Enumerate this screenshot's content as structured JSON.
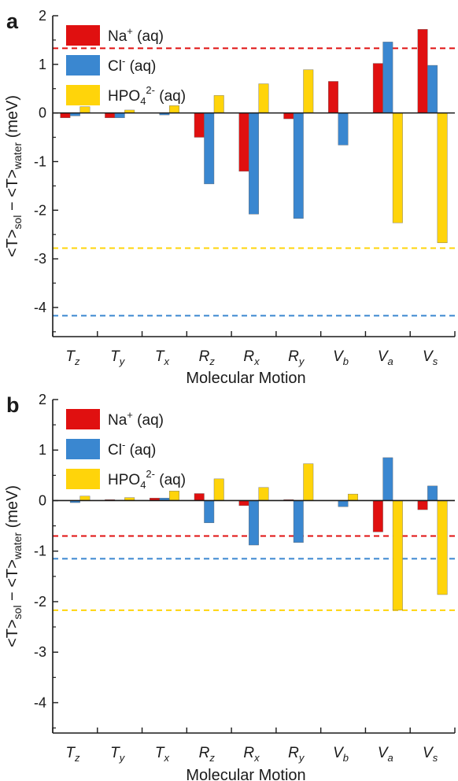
{
  "chart_data": [
    {
      "type": "bar",
      "panel_label": "a",
      "categories": [
        {
          "main": "T",
          "sub": "z"
        },
        {
          "main": "T",
          "sub": "y"
        },
        {
          "main": "T",
          "sub": "x"
        },
        {
          "main": "R",
          "sub": "z"
        },
        {
          "main": "R",
          "sub": "x"
        },
        {
          "main": "R",
          "sub": "y"
        },
        {
          "main": "V",
          "sub": "b"
        },
        {
          "main": "V",
          "sub": "a"
        },
        {
          "main": "V",
          "sub": "s"
        }
      ],
      "series": [
        {
          "name": "Na",
          "sup": "+",
          "sub": "",
          "suffix": " (aq)",
          "color": "#e01010",
          "values": [
            -0.1,
            -0.1,
            0,
            -0.5,
            -1.2,
            -0.12,
            0.65,
            1.02,
            1.72
          ],
          "reference": 1.33
        },
        {
          "name": "Cl",
          "sup": "-",
          "sub": "",
          "suffix": " (aq)",
          "color": "#3a87d0",
          "values": [
            -0.06,
            -0.1,
            -0.04,
            -1.46,
            -2.08,
            -2.17,
            -0.66,
            1.46,
            0.98
          ],
          "reference": -4.17
        },
        {
          "name": "HPO",
          "sup": "2-",
          "sub": "4",
          "suffix": " (aq)",
          "color": "#ffd40a",
          "values": [
            0.13,
            0.06,
            0.15,
            0.36,
            0.6,
            0.89,
            0,
            -2.26,
            -2.67
          ],
          "reference": -2.78
        }
      ],
      "xlabel": "Molecular Motion",
      "ylabel": {
        "main": "<T>",
        "sub1": "sol",
        "mid": " − <T>",
        "sub2": "water",
        "suffix": " (meV)"
      },
      "ylim": [
        -4.6,
        2
      ],
      "yticks": [
        2,
        1,
        0,
        -1,
        -2,
        -3,
        -4
      ],
      "legend_position": "top-left",
      "grid": false
    },
    {
      "type": "bar",
      "panel_label": "b",
      "categories": [
        {
          "main": "T",
          "sub": "z"
        },
        {
          "main": "T",
          "sub": "y"
        },
        {
          "main": "T",
          "sub": "x"
        },
        {
          "main": "R",
          "sub": "z"
        },
        {
          "main": "R",
          "sub": "x"
        },
        {
          "main": "R",
          "sub": "y"
        },
        {
          "main": "V",
          "sub": "b"
        },
        {
          "main": "V",
          "sub": "a"
        },
        {
          "main": "V",
          "sub": "s"
        }
      ],
      "series": [
        {
          "name": "Na",
          "sup": "+",
          "sub": "",
          "suffix": " (aq)",
          "color": "#e01010",
          "values": [
            0,
            0.02,
            0.05,
            0.14,
            -0.1,
            0.02,
            0,
            -0.62,
            -0.18
          ],
          "reference": -0.7
        },
        {
          "name": "Cl",
          "sup": "-",
          "sub": "",
          "suffix": " (aq)",
          "color": "#3a87d0",
          "values": [
            -0.04,
            0.01,
            0.05,
            -0.44,
            -0.88,
            -0.83,
            -0.12,
            0.85,
            0.29
          ],
          "reference": -1.15
        },
        {
          "name": "HPO",
          "sup": "2-",
          "sub": "4",
          "suffix": " (aq)",
          "color": "#ffd40a",
          "values": [
            0.09,
            0.06,
            0.19,
            0.43,
            0.26,
            0.73,
            0.13,
            -2.17,
            -1.86
          ],
          "reference": -2.17
        }
      ],
      "xlabel": "Molecular Motion",
      "ylabel": {
        "main": "<T>",
        "sub1": "sol",
        "mid": " − <T>",
        "sub2": "water",
        "suffix": " (meV)"
      },
      "ylim": [
        -4.6,
        2
      ],
      "yticks": [
        2,
        1,
        0,
        -1,
        -2,
        -3,
        -4
      ],
      "legend_position": "top-left",
      "grid": false
    }
  ]
}
